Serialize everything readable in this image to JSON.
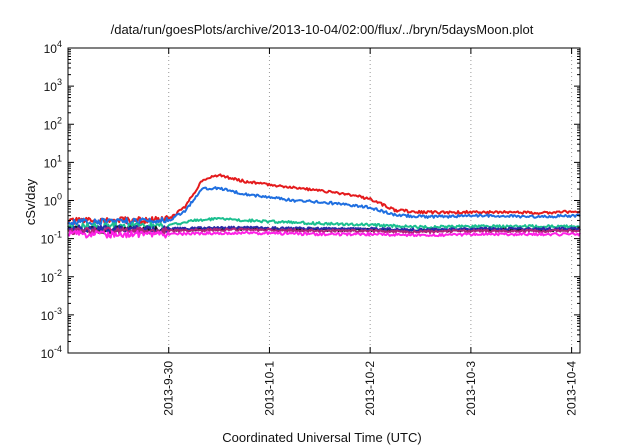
{
  "chart_data": {
    "type": "line",
    "title": "/data/run/goesPlots/archive/2013-10-04/02:00/flux/../bryn/5daysMoon.plot",
    "xlabel": "Coordinated Universal Time (UTC)",
    "ylabel": "cSv/day",
    "yscale": "log",
    "ylim": [
      0.0001,
      10000
    ],
    "y_ticks": [
      {
        "base": "10",
        "exp": "-4"
      },
      {
        "base": "10",
        "exp": "-3"
      },
      {
        "base": "10",
        "exp": "-2"
      },
      {
        "base": "10",
        "exp": "-1"
      },
      {
        "base": "10",
        "exp": "0"
      },
      {
        "base": "10",
        "exp": "1"
      },
      {
        "base": "10",
        "exp": "2"
      },
      {
        "base": "10",
        "exp": "3"
      },
      {
        "base": "10",
        "exp": "4"
      }
    ],
    "xlim": [
      "2013-09-29 00:00",
      "2013-10-04 02:00"
    ],
    "x_ticks": [
      "2013-9-30",
      "2013-10-1",
      "2013-10-2",
      "2013-10-3",
      "2013-10-4"
    ],
    "grid": true,
    "series": [
      {
        "color": "#e41a1c",
        "x": [
          "2013-09-29 00:00",
          "2013-09-29 06:00",
          "2013-09-29 12:00",
          "2013-09-29 18:00",
          "2013-09-30 00:00",
          "2013-09-30 04:00",
          "2013-09-30 08:00",
          "2013-09-30 12:00",
          "2013-09-30 18:00",
          "2013-10-01 00:00",
          "2013-10-01 06:00",
          "2013-10-01 12:00",
          "2013-10-01 18:00",
          "2013-10-02 00:00",
          "2013-10-02 06:00",
          "2013-10-02 12:00",
          "2013-10-02 18:00",
          "2013-10-03 00:00",
          "2013-10-03 06:00",
          "2013-10-03 12:00",
          "2013-10-03 18:00",
          "2013-10-04 02:00"
        ],
        "values": [
          0.28,
          0.3,
          0.3,
          0.3,
          0.32,
          0.7,
          3.5,
          4.6,
          3.2,
          2.6,
          2.2,
          1.8,
          1.5,
          1.1,
          0.55,
          0.5,
          0.48,
          0.5,
          0.5,
          0.48,
          0.48,
          0.52
        ]
      },
      {
        "color": "#1f6fe0",
        "x": [
          "2013-09-29 00:00",
          "2013-09-29 06:00",
          "2013-09-29 12:00",
          "2013-09-29 18:00",
          "2013-09-30 00:00",
          "2013-09-30 04:00",
          "2013-09-30 08:00",
          "2013-09-30 12:00",
          "2013-09-30 18:00",
          "2013-10-01 00:00",
          "2013-10-01 06:00",
          "2013-10-01 12:00",
          "2013-10-01 18:00",
          "2013-10-02 00:00",
          "2013-10-02 06:00",
          "2013-10-02 12:00",
          "2013-10-02 18:00",
          "2013-10-03 00:00",
          "2013-10-03 06:00",
          "2013-10-03 12:00",
          "2013-10-03 18:00",
          "2013-10-04 02:00"
        ],
        "values": [
          0.26,
          0.28,
          0.28,
          0.28,
          0.3,
          0.55,
          2.1,
          2.1,
          1.5,
          1.2,
          1.0,
          0.9,
          0.8,
          0.65,
          0.42,
          0.38,
          0.38,
          0.4,
          0.4,
          0.38,
          0.38,
          0.4
        ]
      },
      {
        "color": "#1bbf8f",
        "x": [
          "2013-09-29 00:00",
          "2013-09-29 12:00",
          "2013-09-30 00:00",
          "2013-09-30 06:00",
          "2013-09-30 12:00",
          "2013-10-01 00:00",
          "2013-10-01 12:00",
          "2013-10-02 00:00",
          "2013-10-02 12:00",
          "2013-10-03 00:00",
          "2013-10-03 12:00",
          "2013-10-04 02:00"
        ],
        "values": [
          0.2,
          0.21,
          0.22,
          0.3,
          0.33,
          0.28,
          0.25,
          0.23,
          0.2,
          0.21,
          0.21,
          0.21
        ]
      },
      {
        "color": "#1a1a1a",
        "x": [
          "2013-09-29 00:00",
          "2013-09-29 12:00",
          "2013-09-30 00:00",
          "2013-09-30 12:00",
          "2013-10-01 00:00",
          "2013-10-01 12:00",
          "2013-10-02 00:00",
          "2013-10-02 12:00",
          "2013-10-03 00:00",
          "2013-10-03 12:00",
          "2013-10-04 02:00"
        ],
        "values": [
          0.17,
          0.17,
          0.17,
          0.18,
          0.18,
          0.17,
          0.17,
          0.16,
          0.17,
          0.17,
          0.17
        ]
      },
      {
        "color": "#2a2aa8",
        "x": [
          "2013-09-29 00:00",
          "2013-09-29 12:00",
          "2013-09-30 00:00",
          "2013-09-30 12:00",
          "2013-10-01 00:00",
          "2013-10-01 12:00",
          "2013-10-02 00:00",
          "2013-10-02 12:00",
          "2013-10-03 00:00",
          "2013-10-03 12:00",
          "2013-10-04 02:00"
        ],
        "values": [
          0.18,
          0.18,
          0.18,
          0.19,
          0.19,
          0.18,
          0.18,
          0.17,
          0.18,
          0.18,
          0.18
        ]
      },
      {
        "color": "#b0247a",
        "x": [
          "2013-09-29 00:00",
          "2013-09-29 12:00",
          "2013-09-30 00:00",
          "2013-09-30 12:00",
          "2013-10-01 00:00",
          "2013-10-01 12:00",
          "2013-10-02 00:00",
          "2013-10-02 12:00",
          "2013-10-03 00:00",
          "2013-10-03 12:00",
          "2013-10-04 02:00"
        ],
        "values": [
          0.16,
          0.16,
          0.16,
          0.17,
          0.17,
          0.16,
          0.16,
          0.15,
          0.16,
          0.16,
          0.16
        ]
      },
      {
        "color": "#ff22e6",
        "x": [
          "2013-09-29 00:00",
          "2013-09-29 12:00",
          "2013-09-30 00:00",
          "2013-09-30 12:00",
          "2013-10-01 00:00",
          "2013-10-01 12:00",
          "2013-10-02 00:00",
          "2013-10-02 12:00",
          "2013-10-03 00:00",
          "2013-10-03 12:00",
          "2013-10-04 02:00"
        ],
        "values": [
          0.13,
          0.13,
          0.13,
          0.14,
          0.14,
          0.13,
          0.13,
          0.12,
          0.13,
          0.13,
          0.13
        ]
      }
    ]
  }
}
